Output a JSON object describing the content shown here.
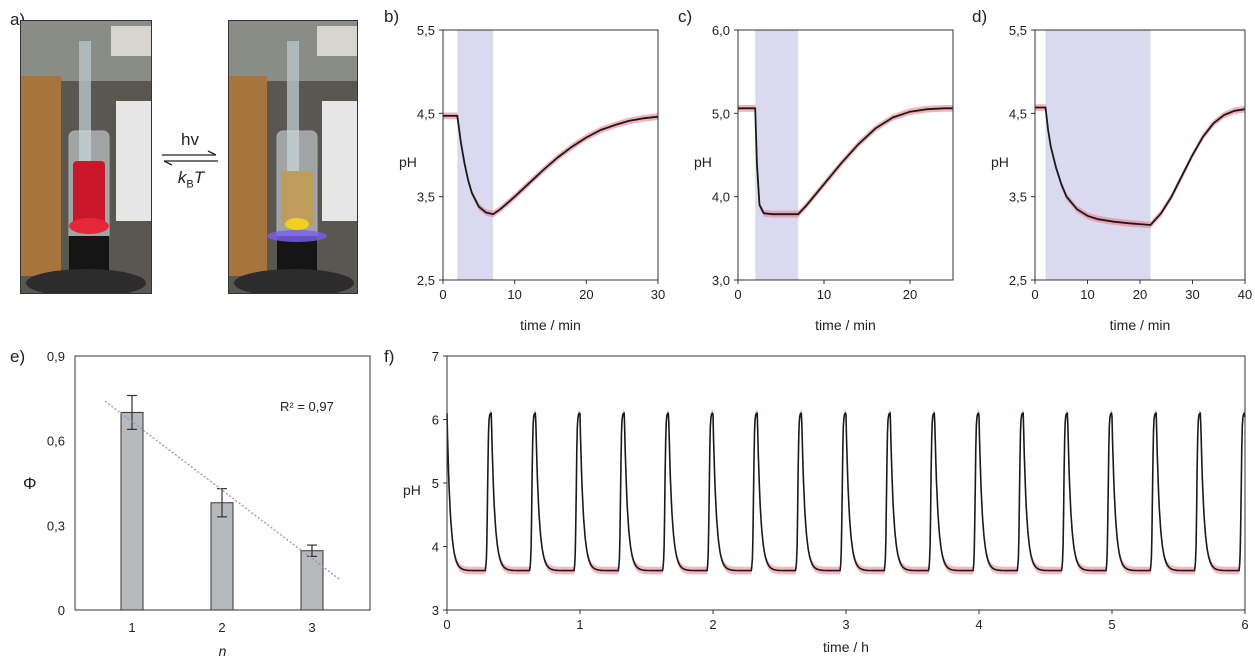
{
  "panel_a": {
    "label": "a)",
    "forward": "hv",
    "backward_k": "k",
    "backward_sub": "B",
    "backward_T": "T"
  },
  "chart_data": [
    {
      "id": "b",
      "panel_label": "b)",
      "type": "line",
      "xlabel": "time / min",
      "ylabel": "pH",
      "xlim": [
        0,
        30
      ],
      "ylim": [
        2.5,
        5.5
      ],
      "xticks": [
        0,
        10,
        20,
        30
      ],
      "yticks": [
        "2,5",
        "3,5",
        "4,5",
        "5,5"
      ],
      "shade": [
        2,
        7
      ],
      "x": [
        0,
        2,
        2.5,
        3,
        3.5,
        4,
        5,
        6,
        7,
        8,
        10,
        12,
        14,
        16,
        18,
        20,
        22,
        24,
        26,
        28,
        30
      ],
      "series": [
        {
          "values": [
            4.47,
            4.47,
            4.15,
            3.9,
            3.7,
            3.55,
            3.38,
            3.31,
            3.29,
            3.35,
            3.5,
            3.66,
            3.82,
            3.97,
            4.1,
            4.21,
            4.3,
            4.36,
            4.41,
            4.44,
            4.46
          ]
        }
      ]
    },
    {
      "id": "c",
      "panel_label": "c)",
      "type": "line",
      "xlabel": "time / min",
      "ylabel": "pH",
      "xlim": [
        0,
        25
      ],
      "ylim": [
        3.0,
        6.0
      ],
      "xticks": [
        0,
        10,
        20
      ],
      "yticks": [
        "3,0",
        "4,0",
        "5,0",
        "6,0"
      ],
      "shade": [
        2,
        7
      ],
      "x": [
        0,
        2,
        2.2,
        2.5,
        3,
        4,
        5,
        6,
        7,
        8,
        10,
        12,
        14,
        16,
        18,
        20,
        22,
        24,
        25
      ],
      "series": [
        {
          "values": [
            5.06,
            5.06,
            4.4,
            3.9,
            3.8,
            3.79,
            3.79,
            3.79,
            3.79,
            3.9,
            4.15,
            4.4,
            4.63,
            4.82,
            4.95,
            5.02,
            5.05,
            5.06,
            5.06
          ]
        }
      ]
    },
    {
      "id": "d",
      "panel_label": "d)",
      "type": "line",
      "xlabel": "time / min",
      "ylabel": "pH",
      "xlim": [
        0,
        40
      ],
      "ylim": [
        2.5,
        5.5
      ],
      "xticks": [
        0,
        10,
        20,
        30,
        40
      ],
      "yticks": [
        "2,5",
        "3,5",
        "4,5",
        "5,5"
      ],
      "shade": [
        2,
        22
      ],
      "x": [
        0,
        2,
        2.5,
        3,
        4,
        5,
        6,
        8,
        10,
        12,
        15,
        18,
        22,
        24,
        26,
        28,
        30,
        32,
        34,
        36,
        38,
        40
      ],
      "series": [
        {
          "values": [
            4.57,
            4.57,
            4.3,
            4.1,
            3.85,
            3.65,
            3.5,
            3.35,
            3.27,
            3.23,
            3.2,
            3.18,
            3.16,
            3.3,
            3.5,
            3.75,
            4.0,
            4.22,
            4.38,
            4.48,
            4.53,
            4.55
          ]
        }
      ]
    },
    {
      "id": "e",
      "panel_label": "e)",
      "type": "bar",
      "xlabel": "n",
      "ylabel": "Φ",
      "categories": [
        "1",
        "2",
        "3"
      ],
      "values": [
        0.7,
        0.38,
        0.21
      ],
      "errors": [
        0.06,
        0.05,
        0.02
      ],
      "ylim": [
        0,
        0.9
      ],
      "yticks": [
        "0",
        "0,3",
        "0,6",
        "0,9"
      ],
      "annotation": "R² = 0,97",
      "trend": {
        "x": [
          0.7,
          3.3
        ],
        "y": [
          0.74,
          0.11
        ]
      },
      "colors": {
        "bar": "#b7babd",
        "edge": "#333333",
        "trend": "#8a9ab8"
      }
    },
    {
      "id": "f",
      "panel_label": "f)",
      "type": "line",
      "xlabel": "time / h",
      "ylabel": "pH",
      "xlim": [
        0,
        6
      ],
      "ylim": [
        3,
        7
      ],
      "xticks": [
        0,
        1,
        2,
        3,
        4,
        5,
        6
      ],
      "yticks": [
        "3",
        "4",
        "5",
        "6",
        "7"
      ],
      "cycles": 18,
      "period_h": 0.3333,
      "high": 6.1,
      "low": 3.62,
      "dark_fraction": 0.13
    }
  ],
  "colors": {
    "line": "#1a1a1a",
    "band": "#ec7f8e",
    "shade": "#d9daef",
    "axis": "#333333"
  }
}
